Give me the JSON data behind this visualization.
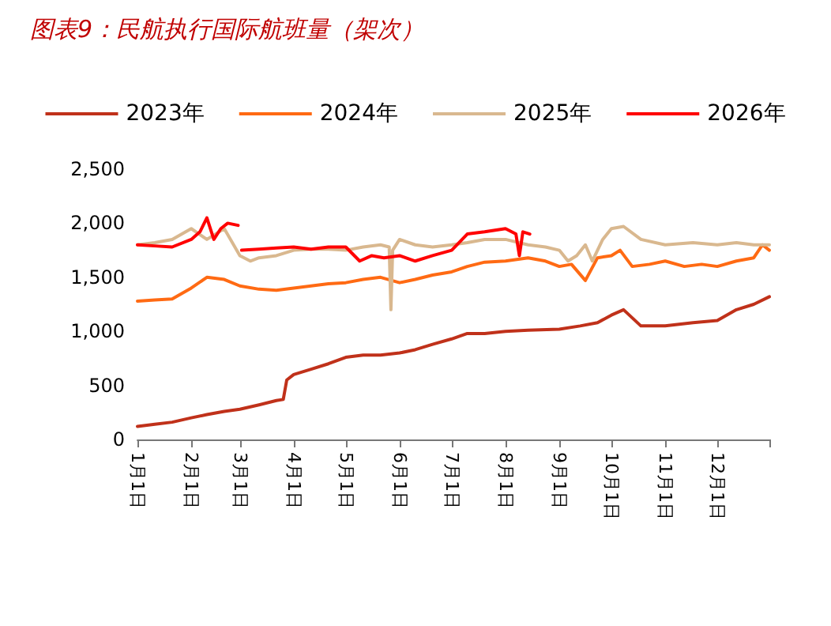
{
  "chart_data": {
    "type": "line",
    "title": "图表9：民航执行国际航班量（架次）",
    "legend": "top",
    "grid": false,
    "marker": "none",
    "line_style": "solid",
    "xlim": [
      "--01-01",
      "--12-31"
    ],
    "ylim": [
      0,
      2500
    ],
    "yticks": [
      {
        "value": 0,
        "label": "0"
      },
      {
        "value": 500,
        "label": "500"
      },
      {
        "value": 1000,
        "label": "1,000"
      },
      {
        "value": 1500,
        "label": "1,500"
      },
      {
        "value": 2000,
        "label": "2,000"
      },
      {
        "value": 2500,
        "label": "2,500"
      }
    ],
    "xticks": [
      {
        "value": "--01-01",
        "label": "1月1日"
      },
      {
        "value": "--02-01",
        "label": "2月1日"
      },
      {
        "value": "--03-01",
        "label": "3月1日"
      },
      {
        "value": "--04-01",
        "label": "4月1日"
      },
      {
        "value": "--05-01",
        "label": "5月1日"
      },
      {
        "value": "--06-01",
        "label": "6月1日"
      },
      {
        "value": "--07-01",
        "label": "7月1日"
      },
      {
        "value": "--08-01",
        "label": "8月1日"
      },
      {
        "value": "--09-01",
        "label": "9月1日"
      },
      {
        "value": "--10-01",
        "label": "10月1日"
      },
      {
        "value": "--11-01",
        "label": "11月1日"
      },
      {
        "value": "--12-01",
        "label": "12月1日"
      },
      {
        "value": "--12-31",
        "label": null
      }
    ],
    "series": [
      {
        "name": "2023年",
        "color": "#c0311a",
        "x": [
          "--01-01",
          "--01-11",
          "--01-21",
          "--02-01",
          "--02-10",
          "--02-20",
          "--03-01",
          "--03-12",
          "--03-22",
          "--03-26",
          "--03-28",
          "--04-01",
          "--04-11",
          "--04-21",
          "--05-01",
          "--05-11",
          "--05-21",
          "--06-01",
          "--06-10",
          "--06-20",
          "--07-01",
          "--07-10",
          "--07-20",
          "--08-01",
          "--08-14",
          "--09-01",
          "--09-13",
          "--09-23",
          "--10-01",
          "--10-08",
          "--10-18",
          "--11-01",
          "--11-17",
          "--12-01",
          "--12-12",
          "--12-22",
          "--12-31"
        ],
        "values": [
          120,
          140,
          160,
          200,
          230,
          260,
          280,
          320,
          360,
          370,
          550,
          600,
          650,
          700,
          760,
          780,
          780,
          800,
          830,
          880,
          930,
          980,
          980,
          1000,
          1010,
          1020,
          1050,
          1080,
          1150,
          1200,
          1050,
          1050,
          1080,
          1100,
          1200,
          1250,
          1320
        ]
      },
      {
        "name": "2024年",
        "color": "#ff6a13",
        "x": [
          "--01-01",
          "--01-11",
          "--01-21",
          "--02-01",
          "--02-10",
          "--02-20",
          "--03-01",
          "--03-12",
          "--03-22",
          "--04-01",
          "--04-11",
          "--04-21",
          "--05-01",
          "--05-11",
          "--05-21",
          "--06-01",
          "--06-10",
          "--06-20",
          "--07-01",
          "--07-10",
          "--07-20",
          "--08-01",
          "--08-14",
          "--08-24",
          "--09-01",
          "--09-08",
          "--09-16",
          "--09-23",
          "--10-01",
          "--10-06",
          "--10-13",
          "--10-23",
          "--11-01",
          "--11-12",
          "--11-22",
          "--12-01",
          "--12-12",
          "--12-22",
          "--12-27",
          "--12-31"
        ],
        "values": [
          1280,
          1290,
          1300,
          1400,
          1500,
          1480,
          1420,
          1390,
          1380,
          1400,
          1420,
          1440,
          1450,
          1480,
          1500,
          1450,
          1480,
          1520,
          1550,
          1600,
          1640,
          1650,
          1680,
          1650,
          1600,
          1620,
          1470,
          1680,
          1700,
          1750,
          1600,
          1620,
          1650,
          1600,
          1620,
          1600,
          1650,
          1680,
          1800,
          1750
        ]
      },
      {
        "name": "2025年",
        "color": "#d9b88f",
        "x": [
          "--01-01",
          "--01-11",
          "--01-21",
          "--02-01",
          "--02-10",
          "--02-20",
          "--03-01",
          "--03-07",
          "--03-12",
          "--03-22",
          "--04-01",
          "--04-11",
          "--04-21",
          "--05-01",
          "--05-11",
          "--05-21",
          "--05-26",
          "--05-27",
          "--05-28",
          "--06-01",
          "--06-10",
          "--06-20",
          "--07-01",
          "--07-10",
          "--07-20",
          "--08-01",
          "--08-14",
          "--08-24",
          "--09-01",
          "--09-06",
          "--09-11",
          "--09-16",
          "--09-20",
          "--09-26",
          "--10-01",
          "--10-08",
          "--10-18",
          "--11-01",
          "--11-17",
          "--12-01",
          "--12-12",
          "--12-22",
          "--12-31"
        ],
        "values": [
          1800,
          1820,
          1850,
          1950,
          1850,
          1950,
          1700,
          1650,
          1680,
          1700,
          1750,
          1760,
          1760,
          1750,
          1780,
          1800,
          1780,
          1200,
          1750,
          1850,
          1800,
          1780,
          1800,
          1820,
          1850,
          1850,
          1800,
          1780,
          1750,
          1650,
          1700,
          1800,
          1650,
          1850,
          1950,
          1970,
          1850,
          1800,
          1820,
          1800,
          1820,
          1800,
          1800
        ]
      },
      {
        "name": "2026年",
        "color": "#ff0000",
        "x": [
          "--01-01",
          "--01-11",
          "--01-21",
          "--02-01",
          "--02-06",
          "--02-10",
          "--02-14",
          "--02-18",
          "--02-22",
          "--02-28",
          "--03-01",
          "--03-02",
          "--03-12",
          "--03-22",
          "--04-01",
          "--04-11",
          "--04-21",
          "--05-01",
          "--05-09",
          "--05-16",
          "--05-23",
          "--06-01",
          "--06-10",
          "--06-20",
          "--07-01",
          "--07-10",
          "--07-20",
          "--08-01",
          "--08-07",
          "--08-09",
          "--08-11",
          "--08-15"
        ],
        "values": [
          1800,
          1790,
          1780,
          1850,
          1920,
          2050,
          1850,
          1950,
          2000,
          1980,
          null,
          1750,
          1760,
          1770,
          1780,
          1760,
          1780,
          1780,
          1650,
          1700,
          1680,
          1700,
          1650,
          1700,
          1750,
          1900,
          1920,
          1950,
          1900,
          1700,
          1920,
          1900
        ]
      }
    ]
  }
}
